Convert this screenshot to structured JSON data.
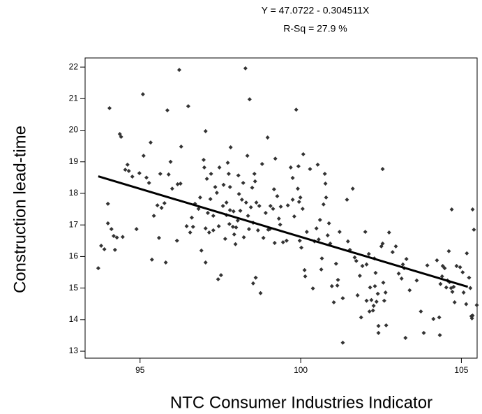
{
  "chart_data": {
    "type": "scatter",
    "title": "Y = 47.0722 - 0.304511X",
    "subtitle": "R-Sq = 27.9 %",
    "x_label": "NTC Consumer Industries Indicator",
    "y_label": "Construction lead-time",
    "color": "#333333",
    "line_color": "#000000",
    "xlim": [
      93.29,
      105.49
    ],
    "ylim": [
      12.78,
      22.29
    ],
    "xticks": [
      95,
      100,
      105
    ],
    "yticks": [
      13,
      14,
      15,
      16,
      17,
      18,
      19,
      20,
      21,
      22
    ],
    "x": [
      93.7,
      93.79,
      93.89,
      94.0,
      94.05,
      94.0,
      94.11,
      94.18,
      94.22,
      94.28,
      94.37,
      94.41,
      94.46,
      94.54,
      94.61,
      94.65,
      94.76,
      94.89,
      94.98,
      95.09,
      95.11,
      95.2,
      95.28,
      95.33,
      95.37,
      95.43,
      95.54,
      95.59,
      95.63,
      95.67,
      95.76,
      95.8,
      95.85,
      95.89,
      95.95,
      96.0,
      96.17,
      96.15,
      96.22,
      96.26,
      96.28,
      96.45,
      96.5,
      96.56,
      96.61,
      96.65,
      96.71,
      96.82,
      96.87,
      96.91,
      96.98,
      97.0,
      97.04,
      97.04,
      97.04,
      97.08,
      97.11,
      97.15,
      97.19,
      97.21,
      97.28,
      97.28,
      97.34,
      97.39,
      97.43,
      97.45,
      97.47,
      97.52,
      97.58,
      97.6,
      97.65,
      97.69,
      97.69,
      97.73,
      97.76,
      97.78,
      97.8,
      97.8,
      97.82,
      97.89,
      97.91,
      97.93,
      97.97,
      97.99,
      98.04,
      98.06,
      98.08,
      98.12,
      98.17,
      98.21,
      98.23,
      98.28,
      98.3,
      98.34,
      98.36,
      98.39,
      98.41,
      98.45,
      98.49,
      98.52,
      98.52,
      98.56,
      98.58,
      98.6,
      98.62,
      98.67,
      98.71,
      98.75,
      98.8,
      98.84,
      98.91,
      98.97,
      98.99,
      99.04,
      99.06,
      99.14,
      99.17,
      99.19,
      99.21,
      99.27,
      99.32,
      99.36,
      99.38,
      99.45,
      99.56,
      99.6,
      99.69,
      99.75,
      99.75,
      99.8,
      99.86,
      99.91,
      99.93,
      99.95,
      99.97,
      99.99,
      100.02,
      100.06,
      100.08,
      100.12,
      100.14,
      100.19,
      100.29,
      100.38,
      100.43,
      100.49,
      100.53,
      100.56,
      100.6,
      100.64,
      100.66,
      100.71,
      100.75,
      100.77,
      100.79,
      100.84,
      100.88,
      100.92,
      100.97,
      101.03,
      101.1,
      101.14,
      101.16,
      101.21,
      101.31,
      101.44,
      101.47,
      101.53,
      101.62,
      101.68,
      101.73,
      101.77,
      101.84,
      101.88,
      101.92,
      102.01,
      102.05,
      102.05,
      102.12,
      102.14,
      102.16,
      102.2,
      102.25,
      102.27,
      102.29,
      102.31,
      102.33,
      102.36,
      102.4,
      102.42,
      102.51,
      102.55,
      102.55,
      102.57,
      102.6,
      102.64,
      102.66,
      102.75,
      102.86,
      102.96,
      103.05,
      103.14,
      103.18,
      103.22,
      103.29,
      103.39,
      103.61,
      103.74,
      103.83,
      103.94,
      104.13,
      104.24,
      104.31,
      104.35,
      104.4,
      104.42,
      104.48,
      104.53,
      104.57,
      104.61,
      104.63,
      104.68,
      104.72,
      104.76,
      104.79,
      104.85,
      104.96,
      105.04,
      105.07,
      105.15,
      105.17,
      105.24,
      105.28,
      105.31,
      105.33,
      105.35,
      105.39,
      105.48,
      104.7,
      105.35,
      101.31,
      102.42,
      103.26,
      104.33
    ],
    "values": [
      15.63,
      16.34,
      16.23,
      17.67,
      20.7,
      17.05,
      16.87,
      16.65,
      16.21,
      16.6,
      19.88,
      19.79,
      16.62,
      18.75,
      18.91,
      18.71,
      18.53,
      16.87,
      18.64,
      21.14,
      19.19,
      18.5,
      18.33,
      19.61,
      15.9,
      17.29,
      17.62,
      16.59,
      18.62,
      17.54,
      17.69,
      15.81,
      20.63,
      18.6,
      19.0,
      18.15,
      18.29,
      16.5,
      21.91,
      18.31,
      19.48,
      16.96,
      20.76,
      16.76,
      17.23,
      16.94,
      17.67,
      17.51,
      17.87,
      16.19,
      19.06,
      18.82,
      16.89,
      15.81,
      19.97,
      18.46,
      17.38,
      16.76,
      17.82,
      18.62,
      16.83,
      17.29,
      18.2,
      18.02,
      15.28,
      16.96,
      18.82,
      15.41,
      17.6,
      18.27,
      16.56,
      17.31,
      17.71,
      18.97,
      18.62,
      17.03,
      17.47,
      18.2,
      19.46,
      16.94,
      17.43,
      16.7,
      16.39,
      16.92,
      17.14,
      18.57,
      17.98,
      17.45,
      17.8,
      18.33,
      16.61,
      21.96,
      17.71,
      19.19,
      17.29,
      16.87,
      20.98,
      17.56,
      18.18,
      17.07,
      15.15,
      18.62,
      18.38,
      15.33,
      17.71,
      16.83,
      17.6,
      14.84,
      18.93,
      16.59,
      17.38,
      19.77,
      16.85,
      16.87,
      17.6,
      17.51,
      18.13,
      16.43,
      19.1,
      17.91,
      17.2,
      17.01,
      17.58,
      16.45,
      16.5,
      17.62,
      18.82,
      18.49,
      17.8,
      17.27,
      20.65,
      18.15,
      18.86,
      17.73,
      16.5,
      17.87,
      16.28,
      17.51,
      19.24,
      15.57,
      15.37,
      16.78,
      18.77,
      14.99,
      16.48,
      16.89,
      18.91,
      16.54,
      17.16,
      15.59,
      15.94,
      17.65,
      18.62,
      18.31,
      17.87,
      16.67,
      17.05,
      16.41,
      15.06,
      14.55,
      15.77,
      15.08,
      15.26,
      16.78,
      14.68,
      17.8,
      16.48,
      16.21,
      18.15,
      15.97,
      15.86,
      14.77,
      15.39,
      14.07,
      15.7,
      16.78,
      14.6,
      15.75,
      16.08,
      14.26,
      15.02,
      14.62,
      14.29,
      14.44,
      15.94,
      15.06,
      15.48,
      14.57,
      14.82,
      13.8,
      16.32,
      18.77,
      16.41,
      15.17,
      14.6,
      14.86,
      13.82,
      16.76,
      16.14,
      16.32,
      15.46,
      15.3,
      15.75,
      15.63,
      15.92,
      14.93,
      15.24,
      14.26,
      13.58,
      15.72,
      14.02,
      15.88,
      14.07,
      15.13,
      15.37,
      15.7,
      15.63,
      15.02,
      15.24,
      16.17,
      15.19,
      15.0,
      14.88,
      15.04,
      14.55,
      15.7,
      15.66,
      15.5,
      14.86,
      14.49,
      16.1,
      15.33,
      15.0,
      14.11,
      14.04,
      14.13,
      16.85,
      14.46,
      17.49,
      17.49,
      13.27,
      13.58,
      13.42,
      13.51
    ],
    "fit": {
      "x": [
        93.7,
        105.2
      ],
      "values": [
        18.54,
        15.04
      ]
    }
  }
}
